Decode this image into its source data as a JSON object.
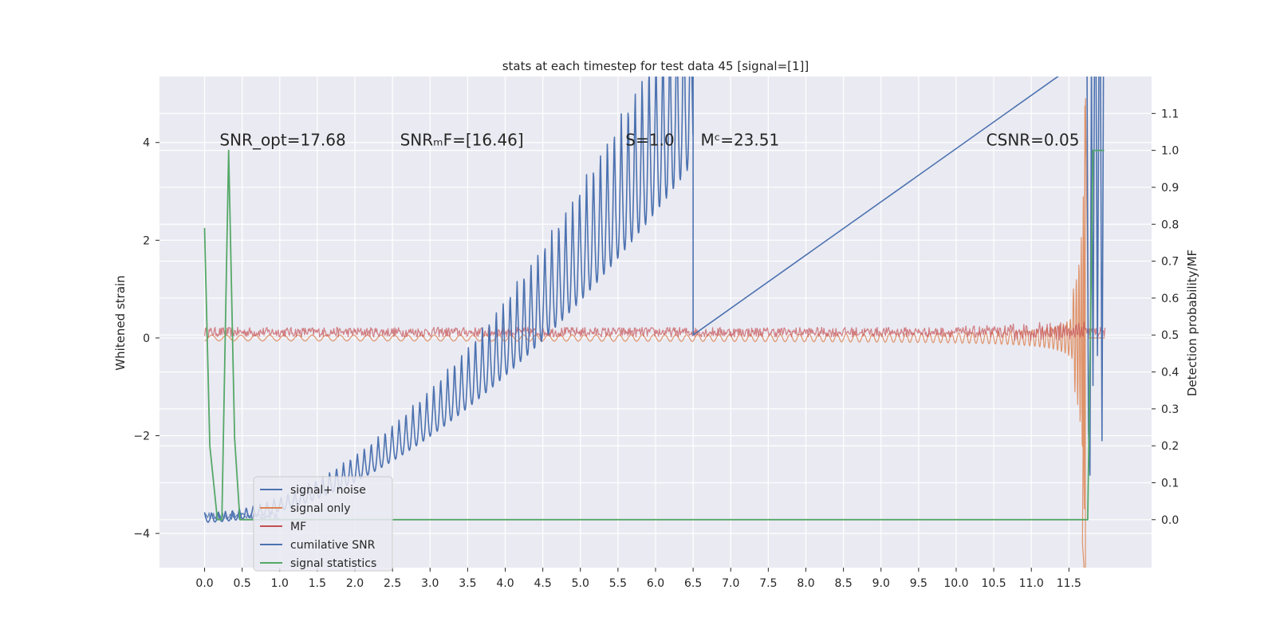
{
  "chart_data": {
    "type": "line",
    "title": "stats at each timestep for test data 45 [signal=[1]]",
    "ylabel": "Whitened strain",
    "ylabel_right": "Detection probability/MF",
    "xlim": [
      -0.6,
      12.6
    ],
    "ylim": [
      -4.7,
      5.35
    ],
    "ylim_right": [
      -0.13,
      1.2
    ],
    "x_ticks": [
      0.0,
      0.5,
      1.0,
      1.5,
      2.0,
      2.5,
      3.0,
      3.5,
      4.0,
      4.5,
      5.0,
      5.5,
      6.0,
      6.5,
      7.0,
      7.5,
      8.0,
      8.5,
      9.0,
      9.5,
      10.0,
      10.5,
      11.0,
      11.5
    ],
    "x_tick_labels": [
      "0.0",
      "0.5",
      "1.0",
      "1.5",
      "2.0",
      "2.5",
      "3.0",
      "3.5",
      "4.0",
      "4.5",
      "5.0",
      "5.5",
      "6.0",
      "6.5",
      "7.0",
      "7.5",
      "8.0",
      "8.5",
      "9.0",
      "9.5",
      "10.0",
      "10.5",
      "11.0",
      "11.5"
    ],
    "y_ticks": [
      -4,
      -2,
      0,
      2,
      4
    ],
    "y_tick_labels": [
      "−4",
      "−2",
      "0",
      "2",
      "4"
    ],
    "y_right_ticks": [
      0.0,
      0.1,
      0.2,
      0.3,
      0.4,
      0.5,
      0.6,
      0.7,
      0.8,
      0.9,
      1.0,
      1.1
    ],
    "y_right_tick_labels": [
      "0.0",
      "0.1",
      "0.2",
      "0.3",
      "0.4",
      "0.5",
      "0.6",
      "0.7",
      "0.8",
      "0.9",
      "1.0",
      "1.1"
    ],
    "grid": true,
    "legend_position": "lower-left",
    "annotations": [
      {
        "text": "SNR_opt=17.68",
        "x": 0.2,
        "y": 4.0
      },
      {
        "text": "SNRₘF=[16.46]",
        "x": 2.6,
        "y": 4.0
      },
      {
        "text": "S=1.0",
        "x": 5.6,
        "y": 4.0
      },
      {
        "text": "Mᶜ=23.51",
        "x": 6.6,
        "y": 4.0
      },
      {
        "text": "CSNR=0.05",
        "x": 10.4,
        "y": 4.0
      }
    ],
    "series": [
      {
        "name": "signal+ noise",
        "color": "#4c72b0",
        "axis": "left",
        "style": "noisy oscillation around 0"
      },
      {
        "name": "signal only",
        "color": "#dd8452",
        "axis": "left",
        "style": "chirp growing to merger near x=11.7"
      },
      {
        "name": "MF",
        "color": "#c44e52",
        "axis": "left",
        "style": "matched filter output near 0, peak near x=11.7"
      },
      {
        "name": "cumilative SNR",
        "color": "#4c72b0",
        "axis": "right",
        "style": "rises from 0 to ~1.2 oscillating, with spikes after x=11.7"
      },
      {
        "name": "signal statistics",
        "color": "#55a868",
        "axis": "right",
        "points": [
          [
            0.0,
            0.79
          ],
          [
            0.07,
            0.2
          ],
          [
            0.17,
            0.0
          ],
          [
            0.23,
            0.0
          ],
          [
            0.32,
            1.0
          ],
          [
            0.4,
            0.22
          ],
          [
            0.47,
            0.0
          ],
          [
            11.65,
            0.0
          ],
          [
            11.75,
            0.0
          ],
          [
            11.82,
            1.0
          ],
          [
            11.97,
            1.0
          ]
        ]
      }
    ]
  }
}
